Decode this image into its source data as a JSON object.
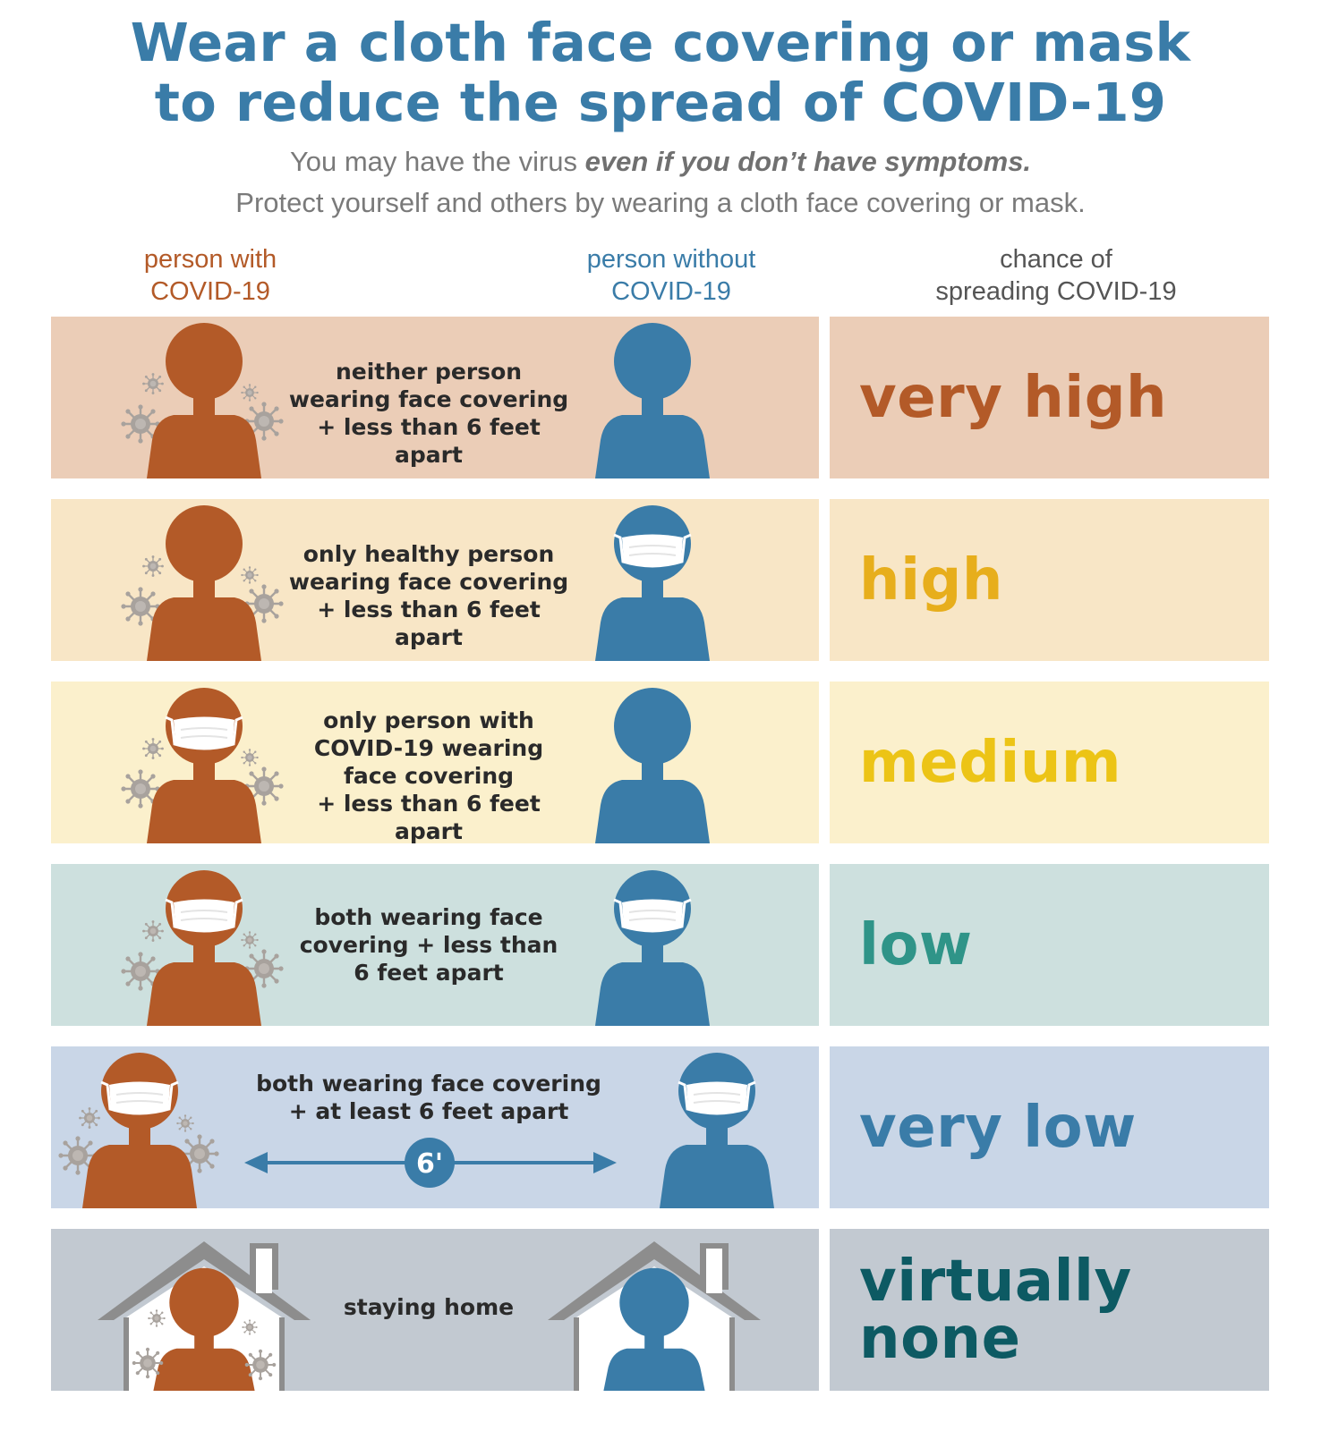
{
  "title": {
    "line1": "Wear a cloth face covering or mask",
    "line2": "to reduce the spread of COVID-19"
  },
  "subtitle": {
    "line1_pre": "You may have the virus ",
    "line1_emph": "even if you don’t have symptoms.",
    "line2": "Protect yourself and others by wearing a cloth face covering or mask."
  },
  "columns": {
    "with": [
      "person with",
      "COVID-19"
    ],
    "without": [
      "person without",
      "COVID-19"
    ],
    "chance": [
      "chance of",
      "spreading COVID-19"
    ]
  },
  "colors": {
    "title": "#3a7ca8",
    "person_with": "#b35a28",
    "person_without": "#3a7ca8",
    "virus": "#9e9a96"
  },
  "rows": [
    {
      "scenario": [
        "neither person",
        "wearing face covering",
        "+ less than 6 feet apart"
      ],
      "risk": "very high",
      "risk_color": "#b35a28",
      "bg": "#ebcdb7"
    },
    {
      "scenario": [
        "only healthy person",
        "wearing face covering",
        "+ less than 6 feet apart"
      ],
      "risk": "high",
      "risk_color": "#e7ae1c",
      "bg": "#f8e6c6"
    },
    {
      "scenario": [
        "only person with",
        "COVID-19 wearing",
        "face covering",
        "+ less than 6 feet apart"
      ],
      "risk": "medium",
      "risk_color": "#ecc416",
      "bg": "#fbf0cc"
    },
    {
      "scenario": [
        "both wearing face",
        "covering + less than",
        "6 feet apart"
      ],
      "risk": "low",
      "risk_color": "#2f9488",
      "bg": "#cde0de"
    },
    {
      "scenario": [
        "both wearing face covering",
        "+ at least 6 feet apart"
      ],
      "distance": "6'",
      "risk": "very low",
      "risk_color": "#3a7ca8",
      "bg": "#c9d6e7"
    },
    {
      "scenario": [
        "staying home"
      ],
      "risk": "virtually none",
      "risk_color": "#0d5a63",
      "bg": "#c2c9d1"
    }
  ]
}
